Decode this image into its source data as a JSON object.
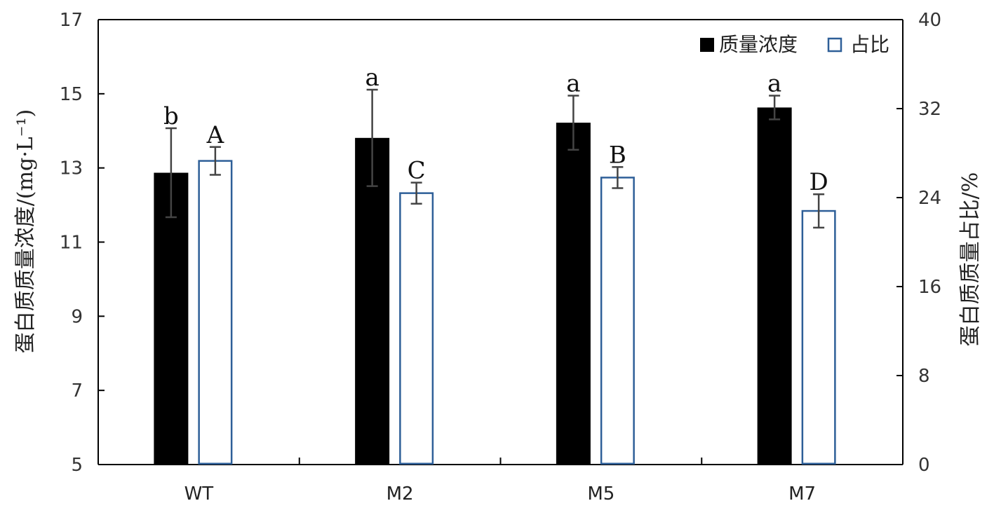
{
  "chart_data": {
    "type": "bar",
    "categories": [
      "WT",
      "M2",
      "M5",
      "M7"
    ],
    "series": [
      {
        "name": "质量浓度",
        "axis": "left",
        "fill": "#000000",
        "values": [
          12.87,
          13.81,
          14.22,
          14.63
        ],
        "errors": [
          1.2,
          1.3,
          0.73,
          0.32
        ],
        "sig_labels": [
          "b",
          "a",
          "a",
          "a"
        ]
      },
      {
        "name": "占比",
        "axis": "right",
        "fill": "#ffffff",
        "stroke": "#2e5f98",
        "values": [
          27.3,
          24.4,
          25.8,
          22.8
        ],
        "errors": [
          1.25,
          0.95,
          0.95,
          1.5
        ],
        "sig_labels": [
          "A",
          "C",
          "B",
          "D"
        ]
      }
    ],
    "ylabel_left": "蛋白质质量浓度/(mg·L⁻¹)",
    "ylabel_right": "蛋白质质量占比/%",
    "ylim_left": [
      5,
      17
    ],
    "yticks_left": [
      "5",
      "7",
      "9",
      "11",
      "13",
      "15",
      "17"
    ],
    "ylim_right": [
      0,
      40
    ],
    "yticks_right": [
      "0",
      "8",
      "16",
      "24",
      "32",
      "40"
    ],
    "grid": false,
    "legend_position": "top-right"
  }
}
